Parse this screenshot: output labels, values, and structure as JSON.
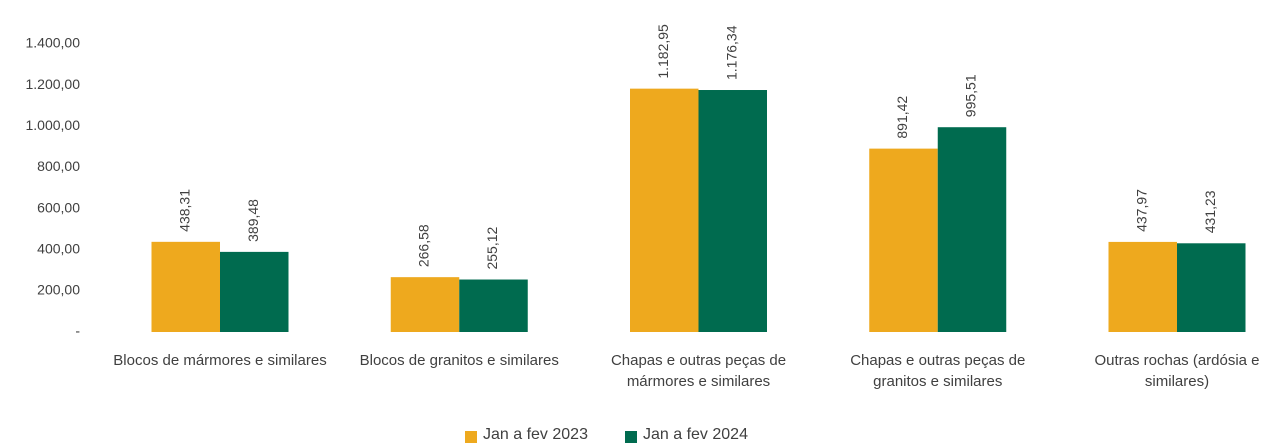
{
  "chart_data": {
    "type": "bar",
    "categories": [
      "Blocos de mármores e similares",
      "Blocos de granitos e similares",
      "Chapas e outras peças de mármores e similares",
      "Chapas e outras peças de granitos e similares",
      "Outras rochas (ardósia e similares)"
    ],
    "series": [
      {
        "name": "Jan a fev 2023",
        "color": "#EEA91E",
        "values": [
          438.31,
          266.58,
          1182.95,
          891.42,
          437.97
        ],
        "value_labels": [
          "438,31",
          "266,58",
          "1.182,95",
          "891,42",
          "437,97"
        ]
      },
      {
        "name": "Jan a fev 2024",
        "color": "#006B4F",
        "values": [
          389.48,
          255.12,
          1176.34,
          995.51,
          431.23
        ],
        "value_labels": [
          "389,48",
          "255,12",
          "1.176,34",
          "995,51",
          "431,23"
        ]
      }
    ],
    "ylim": [
      0,
      1400
    ],
    "yticks": [
      {
        "value": 0,
        "label": "-"
      },
      {
        "value": 200,
        "label": "200,00"
      },
      {
        "value": 400,
        "label": "400,00"
      },
      {
        "value": 600,
        "label": "600,00"
      },
      {
        "value": 800,
        "label": "800,00"
      },
      {
        "value": 1000,
        "label": "1.000,00"
      },
      {
        "value": 1200,
        "label": "1.200,00"
      },
      {
        "value": 1400,
        "label": "1.400,00"
      }
    ],
    "grid": false,
    "legend": "bottom"
  }
}
